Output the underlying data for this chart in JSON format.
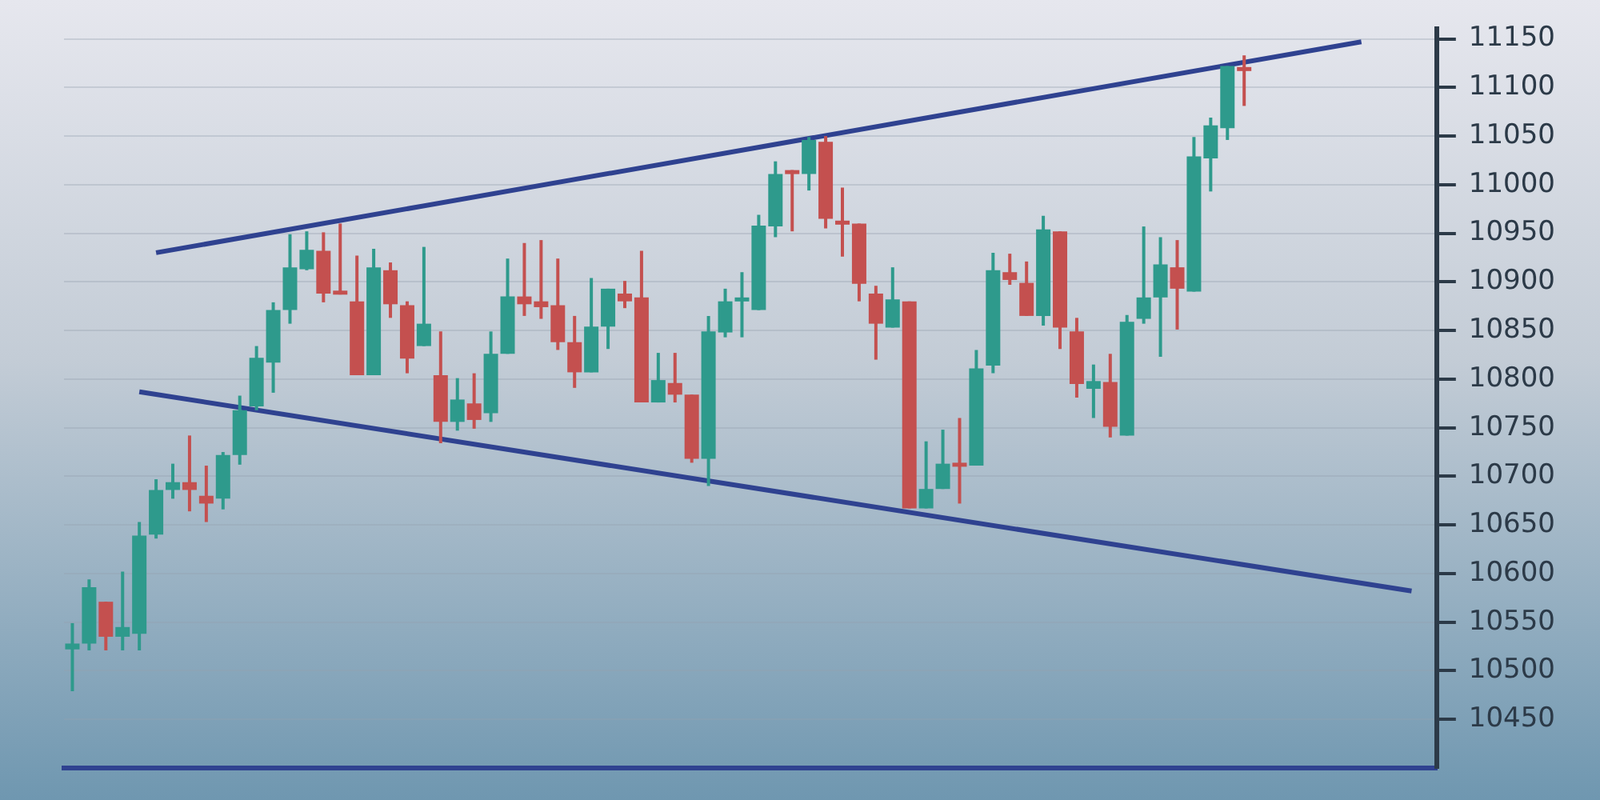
{
  "chart_data": {
    "type": "candlestick",
    "categories": [
      null,
      null,
      null,
      null,
      null,
      null,
      null,
      null,
      null,
      null,
      null,
      null,
      null,
      null,
      null,
      null,
      null,
      null,
      null,
      null,
      null,
      null,
      null,
      null,
      null,
      null,
      null,
      null,
      null,
      null,
      null,
      null,
      null,
      null,
      null,
      null,
      null,
      null,
      null,
      null,
      null,
      null,
      null,
      null,
      null,
      null,
      null,
      null,
      null,
      null,
      null,
      null,
      null,
      null,
      null,
      null,
      null,
      null,
      null,
      null,
      null,
      null,
      null,
      null,
      null,
      null,
      null,
      null,
      null,
      null,
      null,
      null,
      null,
      null,
      null,
      null,
      null,
      null,
      null,
      null,
      null,
      null
    ],
    "ohlc": [
      [
        10522,
        10549,
        10479,
        10528
      ],
      [
        10528,
        10594,
        10521,
        10586
      ],
      [
        10571,
        10571,
        10521,
        10535
      ],
      [
        10535,
        10602,
        10521,
        10545
      ],
      [
        10538,
        10653,
        10521,
        10639
      ],
      [
        10640,
        10697,
        10636,
        10686
      ],
      [
        10686,
        10713,
        10677,
        10694
      ],
      [
        10694,
        10742,
        10664,
        10686
      ],
      [
        10680,
        10711,
        10653,
        10672
      ],
      [
        10677,
        10725,
        10666,
        10722
      ],
      [
        10722,
        10783,
        10712,
        10768
      ],
      [
        10772,
        10834,
        10768,
        10822
      ],
      [
        10817,
        10879,
        10786,
        10871
      ],
      [
        10871,
        10949,
        10857,
        10915
      ],
      [
        10913,
        10952,
        10912,
        10933
      ],
      [
        10932,
        10951,
        10879,
        10888
      ],
      [
        10891,
        10960,
        10887,
        10887
      ],
      [
        10880,
        10927,
        10804,
        10804
      ],
      [
        10804,
        10934,
        10804,
        10915
      ],
      [
        10912,
        10920,
        10863,
        10877
      ],
      [
        10876,
        10880,
        10806,
        10821
      ],
      [
        10834,
        10936,
        10834,
        10857
      ],
      [
        10804,
        10849,
        10734,
        10756
      ],
      [
        10756,
        10801,
        10747,
        10779
      ],
      [
        10775,
        10806,
        10749,
        10758
      ],
      [
        10765,
        10849,
        10756,
        10826
      ],
      [
        10826,
        10924,
        10826,
        10885
      ],
      [
        10885,
        10940,
        10865,
        10877
      ],
      [
        10880,
        10943,
        10862,
        10874
      ],
      [
        10876,
        10924,
        10830,
        10838
      ],
      [
        10838,
        10865,
        10791,
        10807
      ],
      [
        10807,
        10904,
        10807,
        10854
      ],
      [
        10854,
        10893,
        10831,
        10893
      ],
      [
        10888,
        10901,
        10873,
        10880
      ],
      [
        10884,
        10932,
        10776,
        10776
      ],
      [
        10776,
        10827,
        10776,
        10799
      ],
      [
        10796,
        10827,
        10776,
        10784
      ],
      [
        10784,
        10784,
        10714,
        10718
      ],
      [
        10718,
        10865,
        10690,
        10849
      ],
      [
        10848,
        10893,
        10843,
        10880
      ],
      [
        10881,
        10910,
        10843,
        10884
      ],
      [
        10871,
        10969,
        10871,
        10958
      ],
      [
        10957,
        11024,
        10946,
        11011
      ],
      [
        11015,
        11015,
        10952,
        11011
      ],
      [
        11011,
        11049,
        10994,
        11046
      ],
      [
        11044,
        11050,
        10955,
        10965
      ],
      [
        10963,
        10997,
        10926,
        10960
      ],
      [
        10960,
        10960,
        10880,
        10898
      ],
      [
        10888,
        10896,
        10820,
        10857
      ],
      [
        10853,
        10915,
        10853,
        10882
      ],
      [
        10880,
        10880,
        10667,
        10667
      ],
      [
        10667,
        10736,
        10667,
        10687
      ],
      [
        10687,
        10748,
        10687,
        10713
      ],
      [
        10714,
        10760,
        10672,
        10711
      ],
      [
        10711,
        10830,
        10711,
        10811
      ],
      [
        10814,
        10930,
        10806,
        10912
      ],
      [
        10910,
        10929,
        10897,
        10902
      ],
      [
        10899,
        10921,
        10865,
        10865
      ],
      [
        10865,
        10968,
        10855,
        10954
      ],
      [
        10952,
        10952,
        10831,
        10853
      ],
      [
        10849,
        10863,
        10781,
        10795
      ],
      [
        10790,
        10815,
        10760,
        10798
      ],
      [
        10797,
        10826,
        10740,
        10751
      ],
      [
        10742,
        10866,
        10742,
        10859
      ],
      [
        10862,
        10957,
        10857,
        10884
      ],
      [
        10884,
        10946,
        10823,
        10918
      ],
      [
        10915,
        10943,
        10851,
        10893
      ],
      [
        10890,
        11049,
        10890,
        11029
      ],
      [
        11027,
        11069,
        10993,
        11061
      ],
      [
        11058,
        11122,
        11046,
        11122
      ],
      [
        11121,
        11133,
        11081,
        11118
      ],
      null,
      null,
      null,
      null,
      null,
      null,
      null,
      null,
      null,
      null,
      null
    ],
    "colors": [
      "#2e9a8c",
      "#2e9a8c",
      "#c4504f",
      "#2e9a8c",
      "#2e9a8c",
      "#2e9a8c",
      "#2e9a8c",
      "#c4504f",
      "#c4504f",
      "#2e9a8c",
      "#2e9a8c",
      "#2e9a8c",
      "#2e9a8c",
      "#2e9a8c",
      "#2e9a8c",
      "#c4504f",
      "#c4504f",
      "#c4504f",
      "#2e9a8c",
      "#c4504f",
      "#c4504f",
      "#2e9a8c",
      "#c4504f",
      "#2e9a8c",
      "#c4504f",
      "#2e9a8c",
      "#2e9a8c",
      "#c4504f",
      "#c4504f",
      "#c4504f",
      "#c4504f",
      "#2e9a8c",
      "#2e9a8c",
      "#c4504f",
      "#c4504f",
      "#2e9a8c",
      "#c4504f",
      "#c4504f",
      "#2e9a8c",
      "#2e9a8c",
      "#2e9a8c",
      "#2e9a8c",
      "#2e9a8c",
      "#c4504f",
      "#2e9a8c",
      "#c4504f",
      "#c4504f",
      "#c4504f",
      "#c4504f",
      "#2e9a8c",
      "#c4504f",
      "#2e9a8c",
      "#2e9a8c",
      "#c4504f",
      "#2e9a8c",
      "#2e9a8c",
      "#c4504f",
      "#c4504f",
      "#2e9a8c",
      "#c4504f",
      "#c4504f",
      "#2e9a8c",
      "#c4504f",
      "#2e9a8c",
      "#2e9a8c",
      "#2e9a8c",
      "#c4504f",
      "#2e9a8c",
      "#2e9a8c",
      "#2e9a8c",
      "#c4504f",
      null,
      null,
      null,
      null,
      null,
      null,
      null,
      null,
      null,
      null,
      null
    ],
    "series": [
      {
        "type": "line",
        "values": [
          null,
          null,
          null,
          null,
          null,
          10930,
          null,
          null,
          null,
          null,
          null,
          null,
          null,
          null,
          null,
          null,
          null,
          null,
          null,
          null,
          null,
          null,
          null,
          null,
          null,
          null,
          null,
          null,
          null,
          null,
          null,
          null,
          null,
          null,
          null,
          null,
          null,
          null,
          null,
          null,
          null,
          null,
          null,
          null,
          null,
          null,
          null,
          null,
          null,
          null,
          null,
          null,
          null,
          null,
          null,
          null,
          null,
          null,
          null,
          null,
          null,
          null,
          null,
          null,
          null,
          null,
          null,
          null,
          null,
          null,
          null,
          null,
          null,
          null,
          null,
          null,
          null,
          11147,
          null,
          null,
          null,
          null
        ],
        "color": "#2f4290"
      },
      {
        "type": "line",
        "values": [
          null,
          null,
          null,
          null,
          10787,
          null,
          null,
          null,
          null,
          null,
          null,
          null,
          null,
          null,
          null,
          null,
          null,
          null,
          null,
          null,
          null,
          null,
          null,
          null,
          null,
          null,
          null,
          null,
          null,
          null,
          null,
          null,
          null,
          null,
          null,
          null,
          null,
          null,
          null,
          null,
          null,
          null,
          null,
          null,
          null,
          null,
          null,
          null,
          null,
          null,
          null,
          null,
          null,
          null,
          null,
          null,
          null,
          null,
          null,
          null,
          null,
          null,
          null,
          null,
          null,
          null,
          null,
          null,
          null,
          null,
          null,
          null,
          null,
          null,
          null,
          null,
          null,
          null,
          null,
          null,
          10582,
          null
        ],
        "color": "#2f4290"
      }
    ],
    "ylim": [
      10400,
      11160
    ],
    "yticks": [
      10450,
      10500,
      10550,
      10600,
      10650,
      10700,
      10750,
      10800,
      10850,
      10900,
      10950,
      11000,
      11050,
      11100,
      11150
    ],
    "tick_labels": "y",
    "grid": "y"
  }
}
